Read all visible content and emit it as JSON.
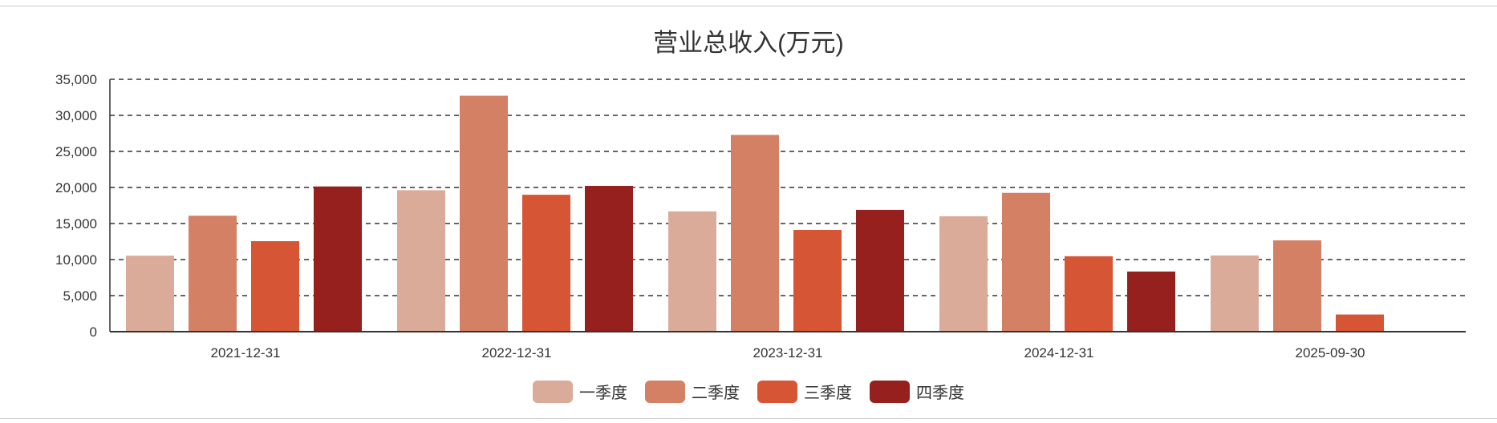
{
  "chart_data": {
    "type": "bar",
    "title": "营业总收入(万元)",
    "categories": [
      "2021-12-31",
      "2022-12-31",
      "2023-12-31",
      "2024-12-31",
      "2025-09-30"
    ],
    "series": [
      {
        "name": "一季度",
        "color": "#dbab9a",
        "values": [
          10540,
          19620,
          16680,
          16010,
          10570
        ]
      },
      {
        "name": "二季度",
        "color": "#d48064",
        "values": [
          16080,
          32720,
          27290,
          19250,
          12660
        ]
      },
      {
        "name": "三季度",
        "color": "#d65535",
        "values": [
          12550,
          18990,
          14110,
          10460,
          2380
        ]
      },
      {
        "name": "四季度",
        "color": "#95201d",
        "values": [
          20140,
          20220,
          16900,
          8340,
          null
        ]
      }
    ],
    "ylim": [
      0,
      35000
    ],
    "yticks": [
      0,
      5000,
      10000,
      15000,
      20000,
      25000,
      30000,
      35000
    ],
    "ytick_labels": [
      "0",
      "5,000",
      "10,000",
      "15,000",
      "20,000",
      "25,000",
      "30,000",
      "35,000"
    ],
    "grid": true,
    "legend_position": "bottom"
  }
}
